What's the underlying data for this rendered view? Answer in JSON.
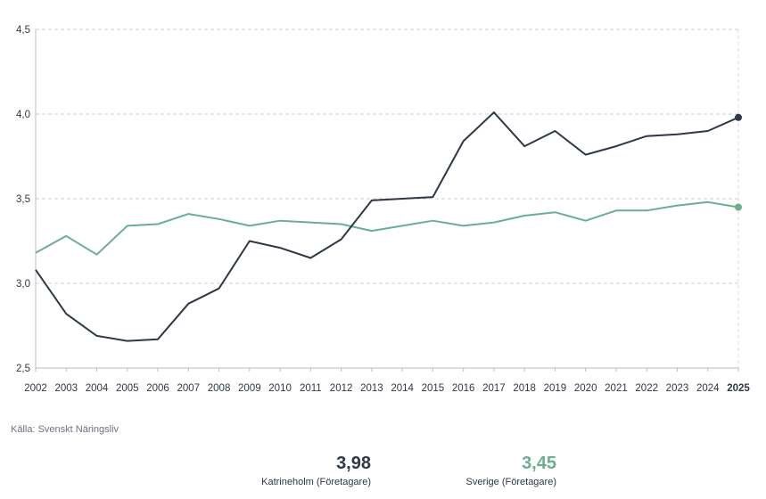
{
  "chart_data": {
    "type": "line",
    "categories": [
      "2002",
      "2003",
      "2004",
      "2005",
      "2006",
      "2007",
      "2008",
      "2009",
      "2010",
      "2011",
      "2012",
      "2013",
      "2014",
      "2015",
      "2016",
      "2017",
      "2018",
      "2019",
      "2020",
      "2021",
      "2022",
      "2023",
      "2024",
      "2025"
    ],
    "series": [
      {
        "name": "Katrineholm (Företagare)",
        "color": "#2f3846",
        "values": [
          3.08,
          2.82,
          2.69,
          2.66,
          2.67,
          2.88,
          2.97,
          3.25,
          3.21,
          3.15,
          3.26,
          3.49,
          3.5,
          3.51,
          3.84,
          4.01,
          3.81,
          3.9,
          3.76,
          3.81,
          3.87,
          3.88,
          3.9,
          3.98
        ]
      },
      {
        "name": "Sverige (Företagare)",
        "color": "#6aaf8f",
        "values": [
          3.18,
          3.28,
          3.17,
          3.34,
          3.35,
          3.41,
          3.38,
          3.34,
          3.37,
          3.36,
          3.35,
          3.31,
          3.34,
          3.37,
          3.34,
          3.36,
          3.4,
          3.42,
          3.37,
          3.43,
          3.43,
          3.46,
          3.48,
          3.45
        ]
      }
    ],
    "ylim": [
      2.5,
      4.5
    ],
    "yticks": [
      "2,5",
      "3,0",
      "3,5",
      "4,0",
      "4,5"
    ],
    "ytick_values": [
      2.5,
      3.0,
      3.5,
      4.0,
      4.5
    ],
    "highlight_category": "2025",
    "grid": true
  },
  "source": "Källa: Svenskt Näringsliv",
  "summary": [
    {
      "value": "3,98",
      "label": "Katrineholm (Företagare)",
      "color": "#2f3846"
    },
    {
      "value": "3,45",
      "label": "Sverige (Företagare)",
      "color": "#6aaf8f"
    }
  ]
}
